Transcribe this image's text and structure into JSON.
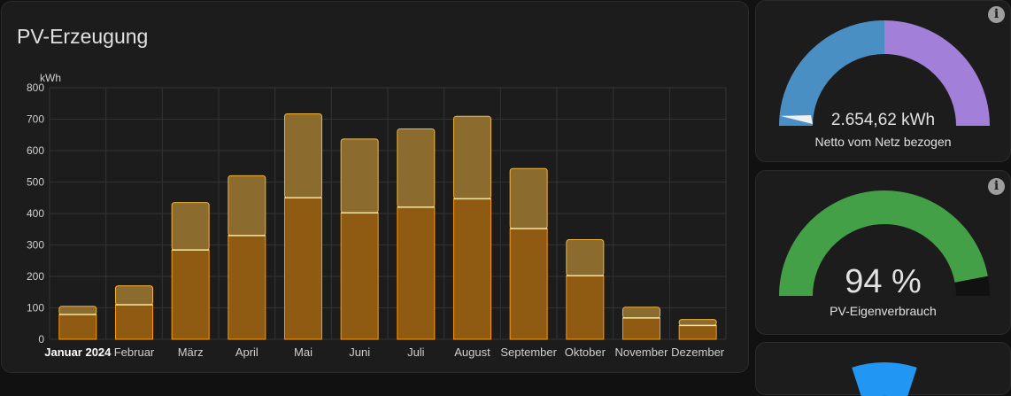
{
  "chart_card": {
    "title": "PV-Erzeugung"
  },
  "chart_data": {
    "type": "bar",
    "unit": "kWh",
    "categories": [
      "Januar 2024",
      "Februar",
      "März",
      "April",
      "Mai",
      "Juni",
      "Juli",
      "August",
      "September",
      "Oktober",
      "November",
      "Dezember"
    ],
    "series": [
      {
        "values": [
          79,
          110,
          284,
          330,
          450,
          402,
          420,
          447,
          352,
          202,
          68,
          44
        ]
      },
      {
        "values": [
          26,
          60,
          151,
          190,
          267,
          235,
          249,
          262,
          191,
          115,
          34,
          19
        ]
      },
      {
        "values": [
          0,
          0,
          0,
          0,
          0,
          0,
          0,
          0,
          0,
          0,
          0,
          0
        ]
      }
    ],
    "ylim": [
      0,
      800
    ],
    "yticks": [
      0,
      100,
      200,
      300,
      400,
      500,
      600,
      700,
      800
    ],
    "grid": true,
    "colors": {
      "base": "#8f5a12",
      "base_edge": "#ff9800",
      "top": "#8c6b2f",
      "top_edge": "#f0b43c",
      "cap": "#f5e6a0"
    }
  },
  "gauges": [
    {
      "value": "2.654,62 kWh",
      "label": "Netto vom Netz bezogen",
      "colors": [
        "#4a8fc4",
        "#a27fd8"
      ],
      "needle_fraction": 0.03
    },
    {
      "value": "94 %",
      "label": "PV-Eigenverbrauch",
      "fill_fraction": 0.94,
      "colors": [
        "#43a047",
        "#111111"
      ]
    },
    {
      "colors": [
        "#2196f3"
      ]
    }
  ]
}
